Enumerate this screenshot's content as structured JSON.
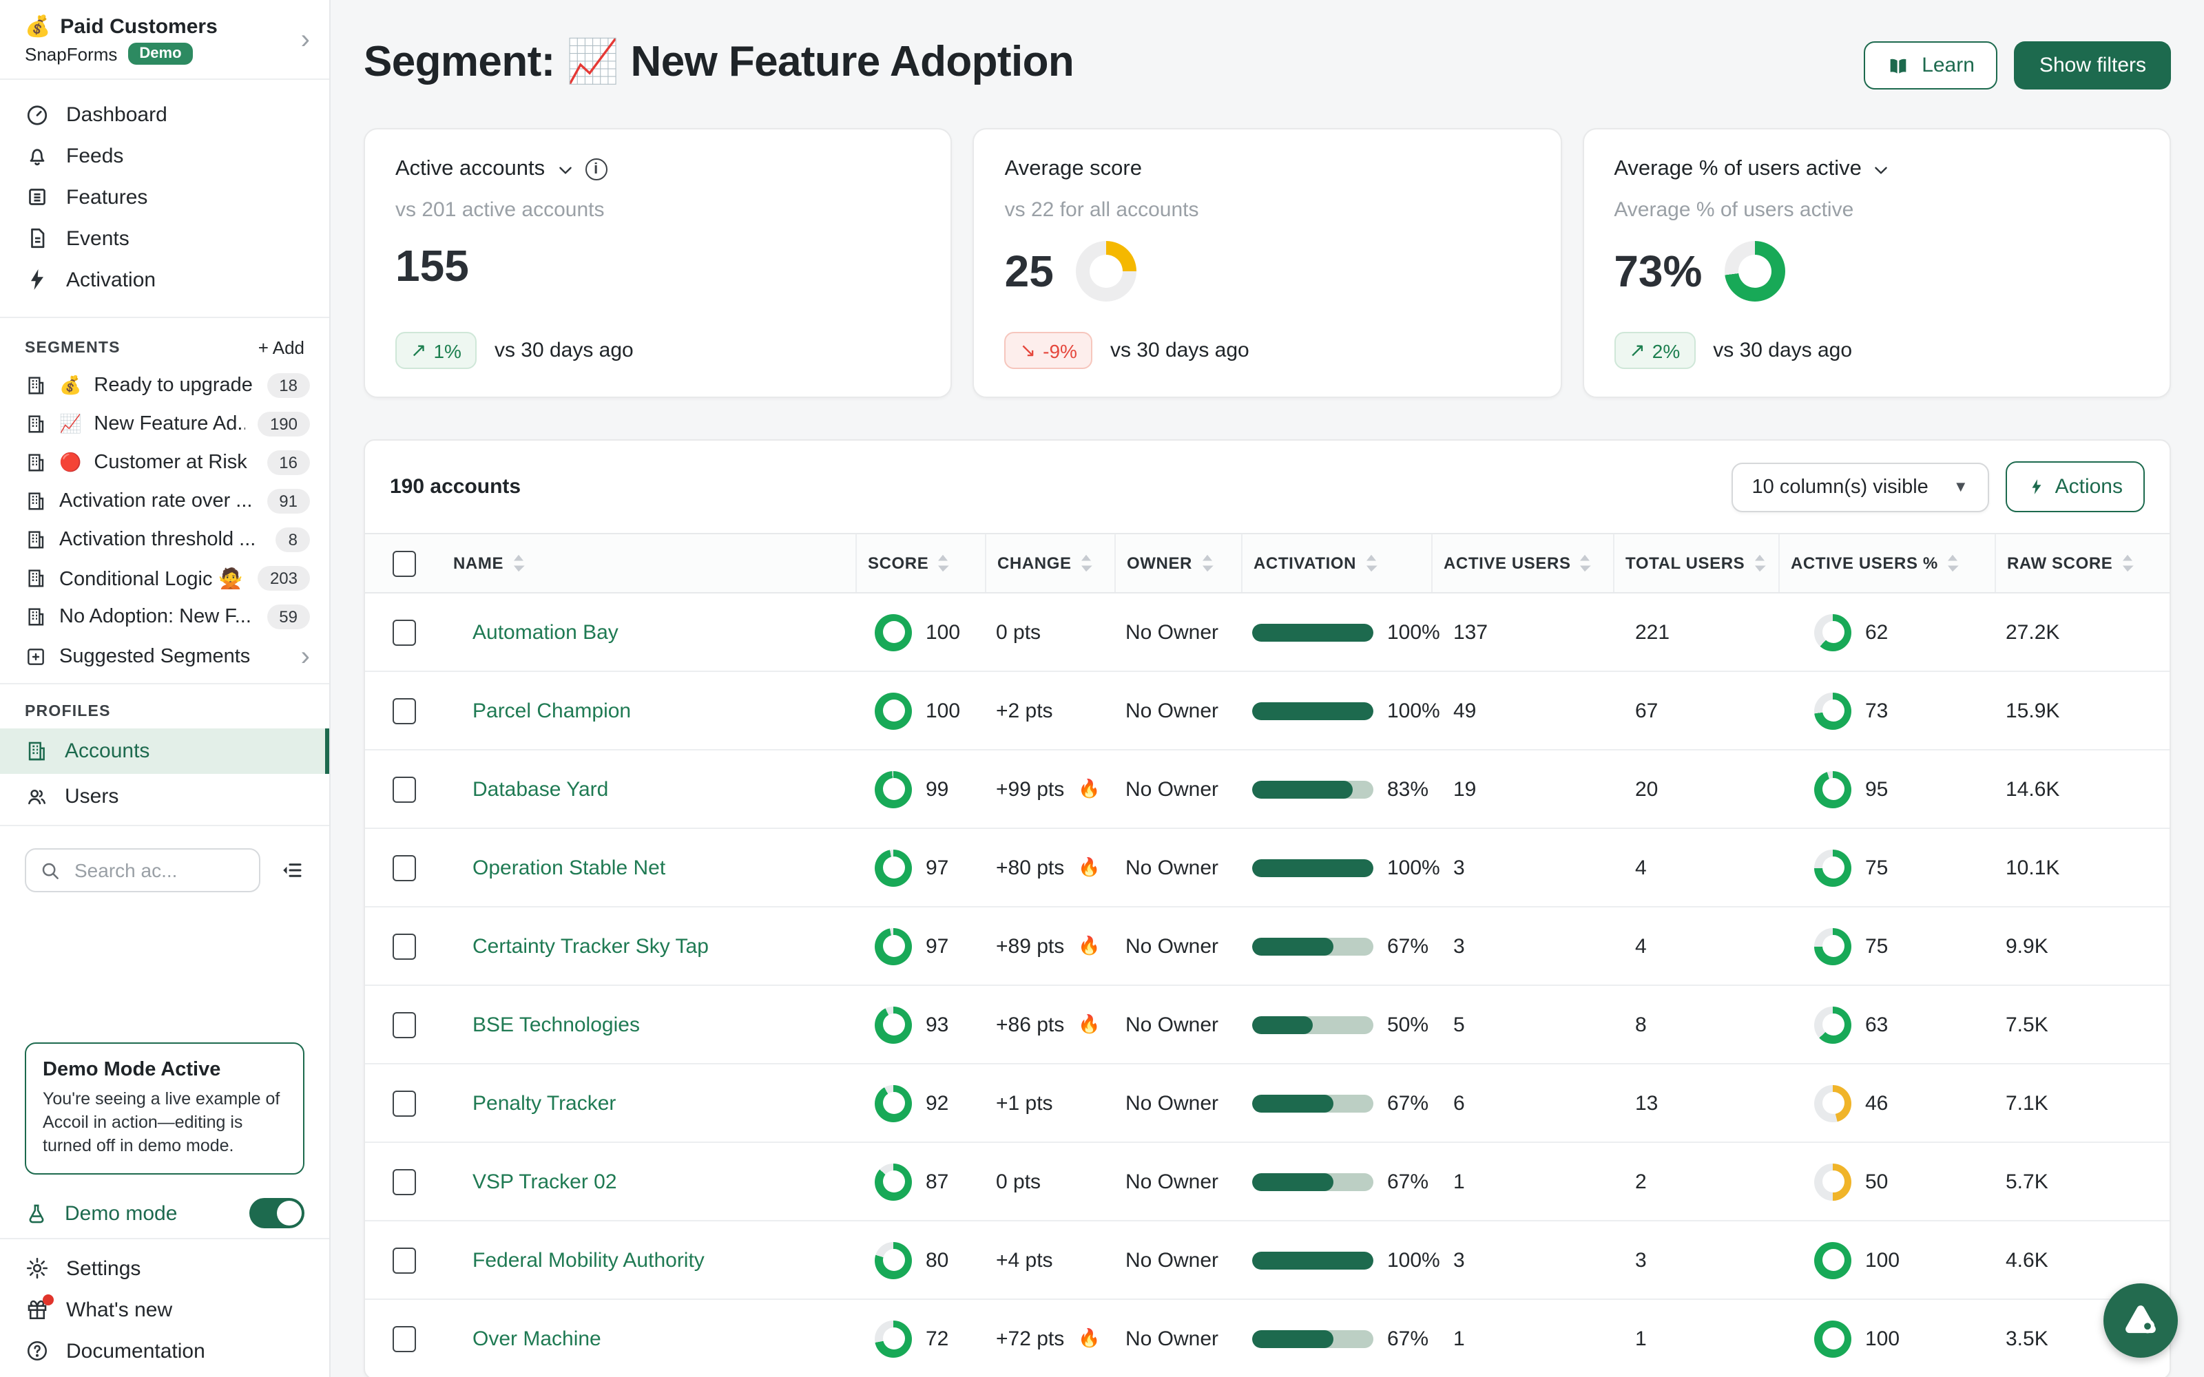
{
  "colors": {
    "theme_green": "#1d6a4e",
    "ring_green": "#18a957",
    "ring_yellow": "#f0b429",
    "donut_yellow": "#f5b800",
    "badge_green": "#2d8a61",
    "pill_up_text": "#1c7f4f",
    "pill_down_text": "#e5473c"
  },
  "sidebar": {
    "workspace": {
      "emoji": "💰",
      "name": "Paid Customers",
      "org": "SnapForms",
      "badge": "Demo"
    },
    "nav": [
      "Dashboard",
      "Feeds",
      "Features",
      "Events",
      "Activation"
    ],
    "segments_heading": "SEGMENTS",
    "add_label": "+ Add",
    "segments": [
      {
        "emoji": "💰",
        "label": "Ready to upgrade",
        "count": "18"
      },
      {
        "emoji": "📈",
        "label": "New Feature Ad...",
        "count": "190"
      },
      {
        "emoji": "🔴",
        "label": "Customer at Risk",
        "count": "16"
      },
      {
        "emoji": "",
        "label": "Activation rate over ...",
        "count": "91"
      },
      {
        "emoji": "",
        "label": "Activation threshold ...",
        "count": "8"
      },
      {
        "emoji": "",
        "label": "Conditional Logic 🙅",
        "count": "203"
      },
      {
        "emoji": "",
        "label": "No Adoption: New F...",
        "count": "59"
      }
    ],
    "suggested_label": "Suggested Segments",
    "profiles_heading": "PROFILES",
    "profiles": {
      "accounts": "Accounts",
      "users": "Users"
    },
    "search_placeholder": "Search ac...",
    "demo_card": {
      "title": "Demo Mode Active",
      "body": "You're seeing a live example of Accoil in action—editing is turned off in demo mode."
    },
    "demo_mode_label": "Demo mode",
    "footer": [
      "Settings",
      "What's new",
      "Documentation"
    ]
  },
  "header": {
    "title": "Segment: 📈 New Feature Adoption",
    "learn": "Learn",
    "show_filters": "Show filters"
  },
  "cards": [
    {
      "title": "Active accounts",
      "subtitle": "vs 201 active accounts",
      "value": "155",
      "trend": "1%",
      "trend_suffix": "vs 30 days ago"
    },
    {
      "title": "Average score",
      "subtitle": "vs 22 for all accounts",
      "value": "25",
      "donut": {
        "pct": 25,
        "color": "#f5b800"
      },
      "trend": "-9%",
      "trend_suffix": "vs 30 days ago"
    },
    {
      "title": "Average % of users active",
      "subtitle": "Average % of users active",
      "value": "73%",
      "donut": {
        "pct": 73,
        "color": "#18a957"
      },
      "trend": "2%",
      "trend_suffix": "vs 30 days ago"
    }
  ],
  "table": {
    "count_label": "190 accounts",
    "columns_select": "10 column(s) visible",
    "actions_label": "Actions",
    "headers": [
      "NAME",
      "SCORE",
      "CHANGE",
      "OWNER",
      "ACTIVATION",
      "ACTIVE USERS",
      "TOTAL USERS",
      "ACTIVE USERS %",
      "RAW SCORE"
    ],
    "rows": [
      {
        "name": "Automation Bay",
        "score": 100,
        "change": "0 pts",
        "fire": false,
        "owner": "No Owner",
        "activation": 100,
        "active_users": "137",
        "total_users": "221",
        "active_pct": 62,
        "pct_color": "#18a957",
        "raw": "27.2K"
      },
      {
        "name": "Parcel Champion",
        "score": 100,
        "change": "+2 pts",
        "fire": false,
        "owner": "No Owner",
        "activation": 100,
        "active_users": "49",
        "total_users": "67",
        "active_pct": 73,
        "pct_color": "#18a957",
        "raw": "15.9K"
      },
      {
        "name": "Database Yard",
        "score": 99,
        "change": "+99 pts",
        "fire": true,
        "owner": "No Owner",
        "activation": 83,
        "active_users": "19",
        "total_users": "20",
        "active_pct": 95,
        "pct_color": "#18a957",
        "raw": "14.6K"
      },
      {
        "name": "Operation Stable Net",
        "score": 97,
        "change": "+80 pts",
        "fire": true,
        "owner": "No Owner",
        "activation": 100,
        "active_users": "3",
        "total_users": "4",
        "active_pct": 75,
        "pct_color": "#18a957",
        "raw": "10.1K"
      },
      {
        "name": "Certainty Tracker Sky Tap",
        "score": 97,
        "change": "+89 pts",
        "fire": true,
        "owner": "No Owner",
        "activation": 67,
        "active_users": "3",
        "total_users": "4",
        "active_pct": 75,
        "pct_color": "#18a957",
        "raw": "9.9K"
      },
      {
        "name": "BSE Technologies",
        "score": 93,
        "change": "+86 pts",
        "fire": true,
        "owner": "No Owner",
        "activation": 50,
        "active_users": "5",
        "total_users": "8",
        "active_pct": 63,
        "pct_color": "#18a957",
        "raw": "7.5K"
      },
      {
        "name": "Penalty Tracker",
        "score": 92,
        "change": "+1 pts",
        "fire": false,
        "owner": "No Owner",
        "activation": 67,
        "active_users": "6",
        "total_users": "13",
        "active_pct": 46,
        "pct_color": "#f0b429",
        "raw": "7.1K"
      },
      {
        "name": "VSP Tracker 02",
        "score": 87,
        "change": "0 pts",
        "fire": false,
        "owner": "No Owner",
        "activation": 67,
        "active_users": "1",
        "total_users": "2",
        "active_pct": 50,
        "pct_color": "#f0b429",
        "raw": "5.7K"
      },
      {
        "name": "Federal Mobility Authority",
        "score": 80,
        "change": "+4 pts",
        "fire": false,
        "owner": "No Owner",
        "activation": 100,
        "active_users": "3",
        "total_users": "3",
        "active_pct": 100,
        "pct_color": "#18a957",
        "raw": "4.6K"
      },
      {
        "name": "Over Machine",
        "score": 72,
        "change": "+72 pts",
        "fire": true,
        "owner": "No Owner",
        "activation": 67,
        "active_users": "1",
        "total_users": "1",
        "active_pct": 100,
        "pct_color": "#18a957",
        "raw": "3.5K"
      }
    ]
  }
}
